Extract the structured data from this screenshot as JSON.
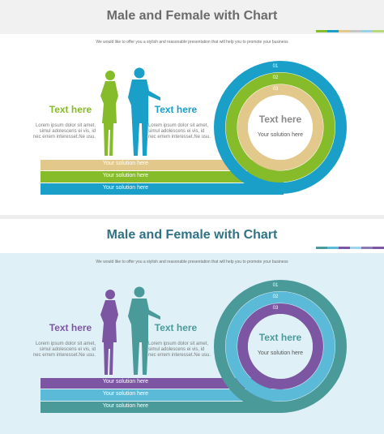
{
  "slides": [
    {
      "title": "Male and Female with Chart",
      "subtitle": "We would like to offer you a stylish and reasonable presentation that will help you to promote your business",
      "left_heading": "Text here",
      "right_heading": "Text here",
      "left_body": "Lorem ipsum dolor sit amet, simul adolescens ei vis, id nec errem interesset.Ne usu.",
      "right_body": "Lorem ipsum dolor sit amet, simul adolescens ei vis, id nec errem interesset.Ne usu.",
      "center_title": "Text here",
      "center_sub": "Your solution here",
      "bands": [
        "Your solution here",
        "Your solution here",
        "Your solution here"
      ],
      "ring_numbers": [
        "01",
        "02",
        "03"
      ],
      "colors": {
        "outer": "#1a9fc9",
        "middle": "#86bc2a",
        "inner": "#e2c98b",
        "female": "#86bc2a",
        "male": "#1a9fc9",
        "left_heading": "#86bc2a",
        "right_heading": "#1a9fc9",
        "center_title": "#8a8a8a"
      },
      "swatches": [
        "#86bc2a",
        "#1a9fc9",
        "#e2c98b",
        "#c6c6c6",
        "#9cd0e6",
        "#b7d97b"
      ]
    },
    {
      "title": "Male and Female with Chart",
      "subtitle": "We would like to offer you a stylish and reasonable presentation that will help you to promote your business",
      "left_heading": "Text here",
      "right_heading": "Text here",
      "left_body": "Lorem ipsum dolor sit amet, simul adolescens ei vis, id nec errem interesset.Ne usu.",
      "right_body": "Lorem ipsum dolor sit amet, simul adolescens ei vis, id nec errem interesset.Ne usu.",
      "center_title": "Text here",
      "center_sub": "Your solution here",
      "bands": [
        "Your solution here",
        "Your solution here",
        "Your solution here"
      ],
      "ring_numbers": [
        "01",
        "02",
        "03"
      ],
      "colors": {
        "outer": "#4a9a9a",
        "middle": "#5bbad8",
        "inner": "#7d56a3",
        "female": "#7d56a3",
        "male": "#4a9a9a",
        "left_heading": "#7d56a3",
        "right_heading": "#4a9a9a",
        "center_title": "#4a9a9a"
      },
      "swatches": [
        "#4a9a9a",
        "#5bbad8",
        "#7d56a3",
        "#9fd5e6",
        "#8a7bb5",
        "#7d56a3"
      ]
    }
  ]
}
